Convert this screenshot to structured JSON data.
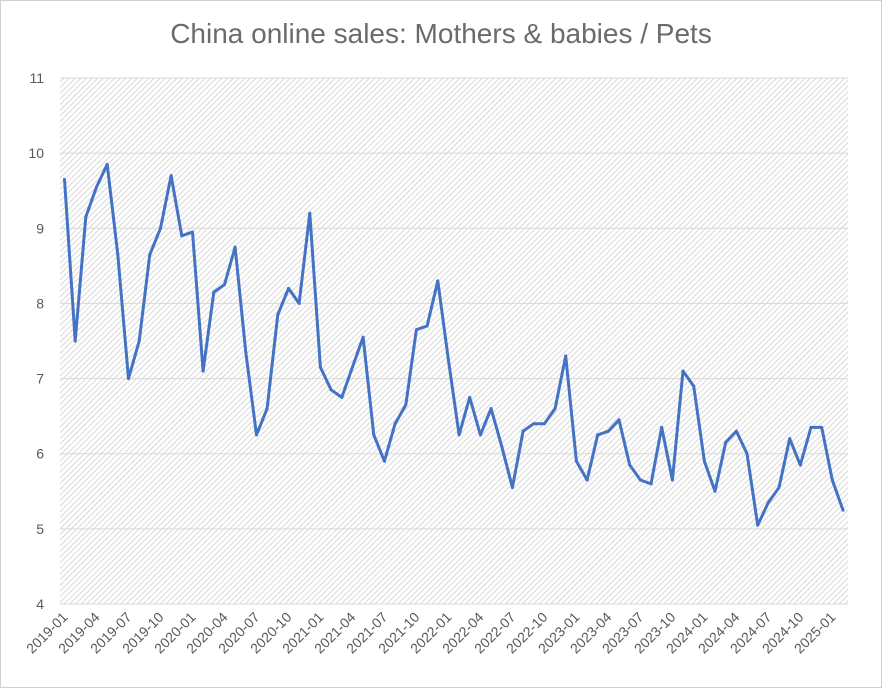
{
  "chart_data": {
    "type": "line",
    "title": "China online sales: Mothers & babies / Pets",
    "xlabel": "",
    "ylabel": "",
    "ylim": [
      4,
      11
    ],
    "yticks": [
      4,
      5,
      6,
      7,
      8,
      9,
      10,
      11
    ],
    "grid": true,
    "legend": "none",
    "line_color": "#4472c4",
    "x_tick_labels": [
      "2019-01",
      "2019-04",
      "2019-07",
      "2019-10",
      "2020-01",
      "2020-04",
      "2020-07",
      "2020-10",
      "2021-01",
      "2021-04",
      "2021-07",
      "2021-10",
      "2022-01",
      "2022-04",
      "2022-07",
      "2022-10",
      "2023-01",
      "2023-04",
      "2023-07",
      "2023-10",
      "2024-01",
      "2024-04",
      "2024-07",
      "2024-10",
      "2025-01"
    ],
    "x": [
      "2019-01",
      "2019-02",
      "2019-03",
      "2019-04",
      "2019-05",
      "2019-06",
      "2019-07",
      "2019-08",
      "2019-09",
      "2019-10",
      "2019-11",
      "2019-12",
      "2020-01",
      "2020-02",
      "2020-03",
      "2020-04",
      "2020-05",
      "2020-06",
      "2020-07",
      "2020-08",
      "2020-09",
      "2020-10",
      "2020-11",
      "2020-12",
      "2021-01",
      "2021-02",
      "2021-03",
      "2021-04",
      "2021-05",
      "2021-06",
      "2021-07",
      "2021-08",
      "2021-09",
      "2021-10",
      "2021-11",
      "2021-12",
      "2022-01",
      "2022-02",
      "2022-03",
      "2022-04",
      "2022-05",
      "2022-06",
      "2022-07",
      "2022-08",
      "2022-09",
      "2022-10",
      "2022-11",
      "2022-12",
      "2023-01",
      "2023-02",
      "2023-03",
      "2023-04",
      "2023-05",
      "2023-06",
      "2023-07",
      "2023-08",
      "2023-09",
      "2023-10",
      "2023-11",
      "2023-12",
      "2024-01",
      "2024-02",
      "2024-03",
      "2024-04",
      "2024-05",
      "2024-06",
      "2024-07",
      "2024-08",
      "2024-09",
      "2024-10",
      "2024-11",
      "2024-12",
      "2025-01",
      "2025-02"
    ],
    "values": [
      9.65,
      7.5,
      9.15,
      9.55,
      9.85,
      8.65,
      7.0,
      7.5,
      8.65,
      9.0,
      9.7,
      8.9,
      8.95,
      7.1,
      8.15,
      8.25,
      8.75,
      7.35,
      6.25,
      6.6,
      7.85,
      8.2,
      8.0,
      9.2,
      7.15,
      6.85,
      6.75,
      7.15,
      7.55,
      6.25,
      5.9,
      6.4,
      6.65,
      7.65,
      7.7,
      8.3,
      7.25,
      6.25,
      6.75,
      6.25,
      6.6,
      6.1,
      5.55,
      6.3,
      6.4,
      6.4,
      6.6,
      7.3,
      5.9,
      5.65,
      6.25,
      6.3,
      6.45,
      5.85,
      5.65,
      5.6,
      6.35,
      5.65,
      7.1,
      6.9,
      5.9,
      5.5,
      6.15,
      6.3,
      6.0,
      5.05,
      5.35,
      5.55,
      6.2,
      5.85,
      6.35,
      6.35,
      5.65,
      5.25
    ]
  }
}
